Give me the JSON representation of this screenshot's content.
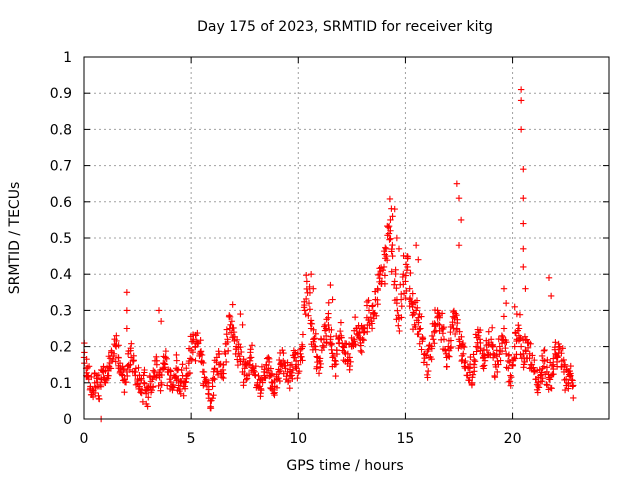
{
  "chart_data": {
    "type": "scatter",
    "title": "Day 175 of 2023, SRMTID for receiver kitg",
    "xlabel": "GPS time / hours",
    "ylabel": "SRMTID / TECUs",
    "xlim": [
      0,
      24.5
    ],
    "ylim": [
      0,
      1
    ],
    "x_ticks": [
      "0",
      "5",
      "10",
      "15",
      "20"
    ],
    "y_ticks": [
      "0",
      "0.1",
      "0.2",
      "0.3",
      "0.4",
      "0.5",
      "0.6",
      "0.7",
      "0.8",
      "0.9",
      "1"
    ],
    "grid": true,
    "marker": "+",
    "marker_color": "#ff0000",
    "series": [
      {
        "name": "SRMTID",
        "x": [
          0,
          0.1,
          0.2,
          0.3,
          0.4,
          0.5,
          0.6,
          0.7,
          0.8,
          0.9,
          1.0,
          1.1,
          1.2,
          1.3,
          1.4,
          1.5,
          1.6,
          1.7,
          1.8,
          1.9,
          2.0,
          2.1,
          2.2,
          2.3,
          2.4,
          2.5,
          2.6,
          2.7,
          2.8,
          2.9,
          3.0,
          3.1,
          3.2,
          3.3,
          3.4,
          3.5,
          3.6,
          3.7,
          3.8,
          3.9,
          4.0,
          4.1,
          4.2,
          4.3,
          4.4,
          4.5,
          4.6,
          4.7,
          4.8,
          4.9,
          5.0,
          5.1,
          5.2,
          5.3,
          5.4,
          5.5,
          5.6,
          5.7,
          5.8,
          5.9,
          6.0,
          6.1,
          6.2,
          6.3,
          6.4,
          6.5,
          6.6,
          6.7,
          6.8,
          6.9,
          7.0,
          7.1,
          7.2,
          7.3,
          7.4,
          7.5,
          7.6,
          7.7,
          7.8,
          7.9,
          8.0,
          8.1,
          8.2,
          8.3,
          8.4,
          8.5,
          8.6,
          8.7,
          8.8,
          8.9,
          9.0,
          9.1,
          9.2,
          9.3,
          9.4,
          9.5,
          9.6,
          9.7,
          9.8,
          9.9,
          10.0,
          10.1,
          10.2,
          10.3,
          10.4,
          10.5,
          10.6,
          10.7,
          10.8,
          10.9,
          11.0,
          11.1,
          11.2,
          11.3,
          11.4,
          11.5,
          11.6,
          11.7,
          11.8,
          11.9,
          12.0,
          12.1,
          12.2,
          12.3,
          12.4,
          12.5,
          12.6,
          12.7,
          12.8,
          12.9,
          13.0,
          13.1,
          13.2,
          13.3,
          13.4,
          13.5,
          13.6,
          13.7,
          13.8,
          13.9,
          14.0,
          14.1,
          14.2,
          14.3,
          14.4,
          14.5,
          14.6,
          14.7,
          14.8,
          14.9,
          15.0,
          15.1,
          15.2,
          15.3,
          15.4,
          15.5,
          15.6,
          15.7,
          15.8,
          15.9,
          16.0,
          16.1,
          16.2,
          16.3,
          16.4,
          16.5,
          16.6,
          16.7,
          16.8,
          16.9,
          17.0,
          17.1,
          17.2,
          17.3,
          17.4,
          17.5,
          17.6,
          17.7,
          17.8,
          17.9,
          18.0,
          18.1,
          18.2,
          18.3,
          18.4,
          18.5,
          18.6,
          18.7,
          18.8,
          18.9,
          19.0,
          19.1,
          19.2,
          19.3,
          19.4,
          19.5,
          19.6,
          19.7,
          19.8,
          19.9,
          20.0,
          20.1,
          20.2,
          20.3,
          20.4,
          20.5,
          20.6,
          20.7,
          20.8,
          20.9,
          21.0,
          21.1,
          21.2,
          21.3,
          21.4,
          21.5,
          21.6,
          21.7,
          21.8,
          21.9,
          22.0,
          22.1,
          22.2,
          22.3,
          22.4,
          22.5,
          22.6,
          22.7,
          22.8,
          0.8,
          2.0,
          2.0,
          2.0,
          3.5,
          3.6,
          7.3,
          7.4,
          10.6,
          10.7,
          11.5,
          11.6,
          14.3,
          14.4,
          14.5,
          14.6,
          14.7,
          15.5,
          15.6,
          17.4,
          17.5,
          17.6,
          17.5,
          19.6,
          19.7,
          20.1,
          20.2,
          20.4,
          20.4,
          20.4,
          20.5,
          20.5,
          20.5,
          20.5,
          20.5,
          20.6,
          21.7,
          21.8
        ],
        "y": [
          0.17,
          0.14,
          0.12,
          0.09,
          0.08,
          0.1,
          0.12,
          0.09,
          0.11,
          0.13,
          0.1,
          0.12,
          0.14,
          0.16,
          0.18,
          0.2,
          0.17,
          0.14,
          0.12,
          0.11,
          0.13,
          0.15,
          0.17,
          0.16,
          0.13,
          0.11,
          0.09,
          0.08,
          0.1,
          0.07,
          0.06,
          0.09,
          0.11,
          0.13,
          0.15,
          0.12,
          0.1,
          0.14,
          0.17,
          0.13,
          0.11,
          0.09,
          0.12,
          0.14,
          0.11,
          0.1,
          0.12,
          0.09,
          0.12,
          0.16,
          0.19,
          0.22,
          0.2,
          0.21,
          0.18,
          0.16,
          0.13,
          0.11,
          0.07,
          0.05,
          0.09,
          0.14,
          0.17,
          0.15,
          0.13,
          0.15,
          0.18,
          0.22,
          0.25,
          0.27,
          0.24,
          0.2,
          0.18,
          0.16,
          0.13,
          0.14,
          0.12,
          0.15,
          0.17,
          0.14,
          0.12,
          0.1,
          0.09,
          0.11,
          0.13,
          0.15,
          0.14,
          0.12,
          0.1,
          0.09,
          0.11,
          0.13,
          0.15,
          0.16,
          0.14,
          0.13,
          0.12,
          0.15,
          0.17,
          0.16,
          0.15,
          0.18,
          0.2,
          0.3,
          0.38,
          0.32,
          0.25,
          0.22,
          0.2,
          0.17,
          0.16,
          0.19,
          0.22,
          0.25,
          0.28,
          0.22,
          0.17,
          0.15,
          0.19,
          0.21,
          0.23,
          0.2,
          0.18,
          0.16,
          0.17,
          0.2,
          0.22,
          0.25,
          0.23,
          0.21,
          0.22,
          0.25,
          0.28,
          0.3,
          0.27,
          0.29,
          0.33,
          0.36,
          0.4,
          0.38,
          0.42,
          0.47,
          0.53,
          0.55,
          0.45,
          0.38,
          0.32,
          0.28,
          0.33,
          0.4,
          0.38,
          0.42,
          0.36,
          0.32,
          0.29,
          0.3,
          0.28,
          0.25,
          0.22,
          0.18,
          0.15,
          0.17,
          0.2,
          0.22,
          0.26,
          0.3,
          0.28,
          0.25,
          0.22,
          0.18,
          0.2,
          0.24,
          0.26,
          0.28,
          0.25,
          0.22,
          0.2,
          0.18,
          0.16,
          0.12,
          0.14,
          0.1,
          0.15,
          0.2,
          0.23,
          0.21,
          0.18,
          0.17,
          0.19,
          0.21,
          0.22,
          0.18,
          0.15,
          0.16,
          0.2,
          0.23,
          0.25,
          0.18,
          0.14,
          0.12,
          0.15,
          0.2,
          0.22,
          0.25,
          0.2,
          0.18,
          0.19,
          0.21,
          0.18,
          0.15,
          0.13,
          0.11,
          0.1,
          0.12,
          0.14,
          0.16,
          0.13,
          0.11,
          0.12,
          0.15,
          0.18,
          0.17,
          0.2,
          0.16,
          0.13,
          0.11,
          0.1,
          0.12,
          0.09,
          0.0,
          0.35,
          0.3,
          0.25,
          0.3,
          0.27,
          0.29,
          0.26,
          0.4,
          0.36,
          0.37,
          0.33,
          0.52,
          0.56,
          0.58,
          0.5,
          0.47,
          0.48,
          0.44,
          0.65,
          0.61,
          0.55,
          0.48,
          0.36,
          0.32,
          0.31,
          0.29,
          0.91,
          0.88,
          0.8,
          0.69,
          0.61,
          0.54,
          0.47,
          0.42,
          0.36,
          0.39,
          0.34
        ]
      }
    ]
  }
}
